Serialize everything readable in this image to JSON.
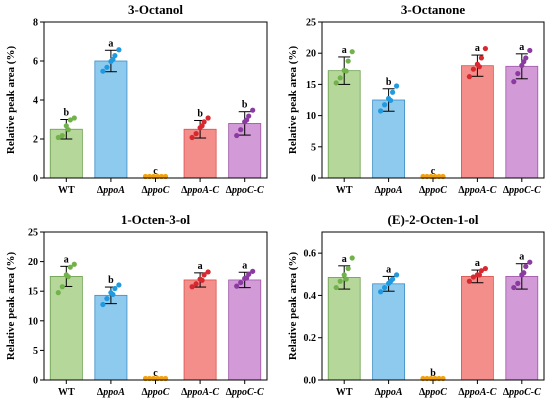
{
  "colors": {
    "bars": [
      "#b5d89a",
      "#8ec9ee",
      "#f4a43c",
      "#f48e8a",
      "#d29ad6"
    ],
    "edges": [
      "#6a9e4c",
      "#3b8ec4",
      "#e08a1e",
      "#d9534f",
      "#a056a8"
    ],
    "dots": [
      "#72b24a",
      "#1f9ae0",
      "#f2a20e",
      "#d7282f",
      "#8a3aa0"
    ]
  },
  "chart_data": [
    {
      "type": "bar",
      "title": "3-Octanol",
      "ylabel": "Relative peak area (%)",
      "xlabel": "",
      "ylim": [
        0,
        8
      ],
      "yticks": [
        "0",
        "2",
        "4",
        "6",
        "8"
      ],
      "yticks_values": [
        0,
        2,
        4,
        6,
        8
      ],
      "categories": [
        "WT",
        "ΔppoA",
        "ΔppoC",
        "ΔppoA-C",
        "ΔppoC-C"
      ],
      "values": [
        2.5,
        6.0,
        0.0,
        2.5,
        2.8
      ],
      "errors": [
        0.5,
        0.55,
        0.0,
        0.45,
        0.6
      ],
      "significance": [
        "b",
        "a",
        "c",
        "b",
        "b"
      ],
      "points": [
        [
          2.0,
          2.1,
          2.6,
          2.9,
          3.0,
          2.4
        ],
        [
          5.4,
          5.6,
          5.9,
          6.2,
          6.5,
          6.0
        ],
        [
          0,
          0,
          0,
          0,
          0,
          0
        ],
        [
          2.0,
          2.2,
          2.5,
          2.8,
          3.0,
          2.6
        ],
        [
          2.1,
          2.4,
          2.8,
          3.1,
          3.4,
          2.9
        ]
      ],
      "grid": false
    },
    {
      "type": "bar",
      "title": "3-Octanone",
      "ylabel": "Relative peak area (%)",
      "xlabel": "",
      "ylim": [
        0,
        25
      ],
      "yticks": [
        "0",
        "5",
        "10",
        "15",
        "20",
        "25"
      ],
      "yticks_values": [
        0,
        5,
        10,
        15,
        20,
        25
      ],
      "categories": [
        "WT",
        "ΔppoA",
        "ΔppoC",
        "ΔppoA-C",
        "ΔppoC-C"
      ],
      "values": [
        17.2,
        12.5,
        0.0,
        18.0,
        17.9
      ],
      "errors": [
        2.2,
        1.8,
        0.0,
        1.7,
        2.0
      ],
      "significance": [
        "a",
        "b",
        "c",
        "a",
        "a"
      ],
      "points": [
        [
          15.0,
          15.8,
          17.0,
          18.5,
          20.0,
          16.9
        ],
        [
          10.5,
          11.5,
          12.5,
          13.5,
          14.5,
          12.2
        ],
        [
          0,
          0,
          0,
          0,
          0,
          0
        ],
        [
          16.0,
          17.2,
          18.0,
          19.0,
          20.5,
          17.6
        ],
        [
          15.2,
          16.5,
          17.8,
          19.0,
          20.2,
          18.4
        ]
      ],
      "grid": false
    },
    {
      "type": "bar",
      "title": "1-Octen-3-ol",
      "ylabel": "Relative peak area (%)",
      "xlabel": "",
      "ylim": [
        0,
        25
      ],
      "yticks": [
        "0",
        "5",
        "10",
        "15",
        "20",
        "25"
      ],
      "yticks_values": [
        0,
        5,
        10,
        15,
        20,
        25
      ],
      "categories": [
        "WT",
        "ΔppoA",
        "ΔppoC",
        "ΔppoA-C",
        "ΔppoC-C"
      ],
      "values": [
        17.5,
        14.3,
        0.0,
        16.9,
        16.9
      ],
      "errors": [
        1.7,
        1.4,
        0.0,
        1.2,
        1.3
      ],
      "significance": [
        "a",
        "b",
        "c",
        "a",
        "a"
      ],
      "points": [
        [
          14.5,
          15.5,
          17.5,
          18.8,
          19.3,
          17.2
        ],
        [
          12.5,
          13.5,
          14.5,
          15.2,
          15.8,
          14.2
        ],
        [
          0,
          0,
          0,
          0,
          0,
          0
        ],
        [
          15.5,
          16.0,
          16.8,
          17.5,
          18.0,
          16.6
        ],
        [
          15.6,
          16.2,
          16.9,
          17.6,
          18.1,
          17.0
        ]
      ],
      "grid": false
    },
    {
      "type": "bar",
      "title": "(E)-2-Octen-1-ol",
      "ylabel": "Relative peak area (%)",
      "xlabel": "",
      "ylim": [
        0,
        0.7
      ],
      "yticks": [
        "0.0",
        "0.2",
        "0.4",
        "0.6"
      ],
      "yticks_values": [
        0,
        0.2,
        0.4,
        0.6
      ],
      "categories": [
        "WT",
        "ΔppoA",
        "ΔppoC",
        "ΔppoA-C",
        "ΔppoC-C"
      ],
      "values": [
        0.485,
        0.455,
        0.0,
        0.49,
        0.49
      ],
      "errors": [
        0.055,
        0.035,
        0.0,
        0.03,
        0.06
      ],
      "significance": [
        "a",
        "a",
        "b",
        "a",
        "a"
      ],
      "points": [
        [
          0.43,
          0.46,
          0.49,
          0.52,
          0.57,
          0.47
        ],
        [
          0.41,
          0.43,
          0.45,
          0.47,
          0.49,
          0.46
        ],
        [
          0,
          0,
          0,
          0,
          0,
          0
        ],
        [
          0.46,
          0.48,
          0.49,
          0.51,
          0.52,
          0.49
        ],
        [
          0.43,
          0.45,
          0.49,
          0.53,
          0.55,
          0.5
        ]
      ],
      "grid": false
    }
  ]
}
